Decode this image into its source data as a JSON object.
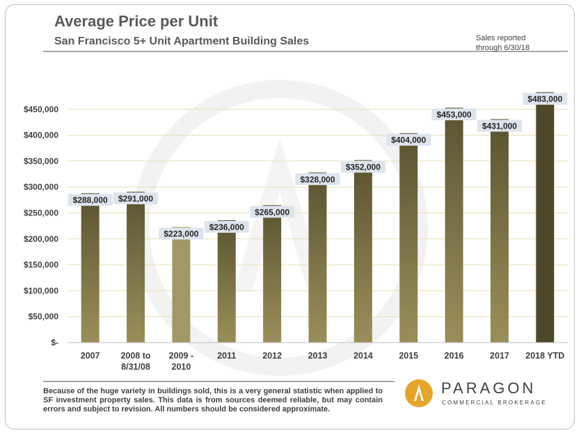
{
  "header": {
    "title": "Average Price per Unit",
    "subtitle": "San Francisco 5+ Unit Apartment Building Sales",
    "note_lines": [
      "Sales reported",
      "through 6/30/18"
    ]
  },
  "chart_data": {
    "type": "bar",
    "title": "Average Price per Unit",
    "subtitle": "San Francisco 5+ Unit Apartment Building Sales",
    "categories": [
      [
        "2007"
      ],
      [
        "2008 to",
        "8/31/08"
      ],
      [
        "2009 -",
        "2010"
      ],
      [
        "2011"
      ],
      [
        "2012"
      ],
      [
        "2013"
      ],
      [
        "2014"
      ],
      [
        "2015"
      ],
      [
        "2016"
      ],
      [
        "2017"
      ],
      [
        "2018 YTD"
      ]
    ],
    "values": [
      288000,
      291000,
      223000,
      236000,
      265000,
      328000,
      352000,
      404000,
      453000,
      431000,
      483000
    ],
    "data_labels": [
      "$288,000",
      "$291,000",
      "$223,000",
      "$236,000",
      "$265,000",
      "$328,000",
      "$352,000",
      "$404,000",
      "$453,000",
      "$431,000",
      "$483,000"
    ],
    "y_ticks": [
      0,
      50000,
      100000,
      150000,
      200000,
      250000,
      300000,
      350000,
      400000,
      450000
    ],
    "y_tick_labels": [
      "$-",
      "$50,000",
      "$100,000",
      "$150,000",
      "$200,000",
      "$250,000",
      "$300,000",
      "$350,000",
      "$400,000",
      "$450,000"
    ],
    "ylim": [
      0,
      500000
    ],
    "grid": true,
    "colors": {
      "bar_top": "#5a5330",
      "bar_bottom": "#9a8f5a",
      "bar_2009_top": "#a39766",
      "bar_2009_bottom": "#a39766",
      "bar_2018_top": "#4f4828",
      "bar_2018_bottom": "#4f4828",
      "label_bg": "#dde4ee",
      "grid": "#e6e0b0"
    }
  },
  "footer": {
    "disclaimer": "Because of the huge variety in buildings sold, this is a very general statistic when applied to SF investment property sales. This data is from sources deemed reliable, but may contain errors and subject to revision. All numbers should be considered approximate."
  },
  "logo": {
    "name": "PARAGON",
    "tagline": "COMMERCIAL BROKERAGE",
    "color": "#e6a52a"
  }
}
